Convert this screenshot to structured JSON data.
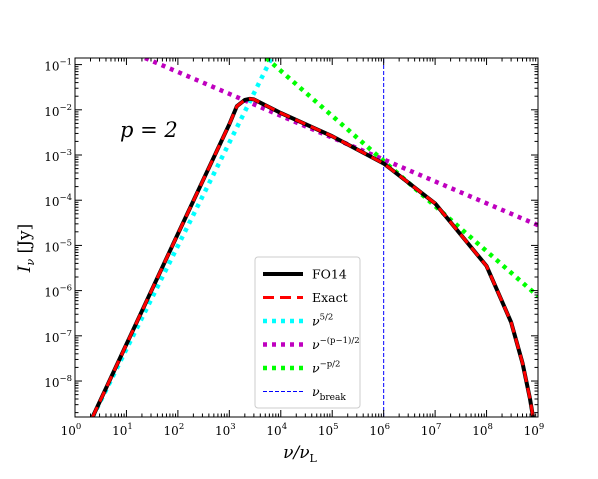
{
  "chart_data": {
    "type": "line",
    "title": "",
    "xlabel": "ν/ν_L",
    "ylabel": "I_ν [Jy]",
    "xscale": "log",
    "yscale": "log",
    "xlim": [
      1,
      1000000000
    ],
    "ylim": [
      1.6e-09,
      0.14
    ],
    "x_ticks": [
      1,
      10,
      100,
      1000,
      10000,
      100000,
      1000000,
      10000000,
      100000000,
      1000000000
    ],
    "x_tick_labels": [
      {
        "base": "10",
        "exp": "0"
      },
      {
        "base": "10",
        "exp": "1"
      },
      {
        "base": "10",
        "exp": "2"
      },
      {
        "base": "10",
        "exp": "3"
      },
      {
        "base": "10",
        "exp": "4"
      },
      {
        "base": "10",
        "exp": "5"
      },
      {
        "base": "10",
        "exp": "6"
      },
      {
        "base": "10",
        "exp": "7"
      },
      {
        "base": "10",
        "exp": "8"
      },
      {
        "base": "10",
        "exp": "9"
      }
    ],
    "y_ticks": [
      1e-08,
      1e-07,
      1e-06,
      1e-05,
      0.0001,
      0.001,
      0.01,
      0.1
    ],
    "y_tick_labels": [
      {
        "base": "10",
        "exp": "−8"
      },
      {
        "base": "10",
        "exp": "−7"
      },
      {
        "base": "10",
        "exp": "−6"
      },
      {
        "base": "10",
        "exp": "−5"
      },
      {
        "base": "10",
        "exp": "−4"
      },
      {
        "base": "10",
        "exp": "−3"
      },
      {
        "base": "10",
        "exp": "−2"
      },
      {
        "base": "10",
        "exp": "−1"
      }
    ],
    "annotation": "p = 2",
    "grid": false,
    "legend_position": "bottom-center",
    "series": [
      {
        "name": "FO14",
        "color": "#000000",
        "style": "solid",
        "x": [
          2.2,
          10,
          100,
          1000,
          1400,
          2000,
          2500,
          3000,
          10000,
          100000,
          1000000,
          10000000,
          100000000,
          300000000,
          500000000,
          700000000,
          800000000
        ],
        "y": [
          1.6e-09,
          6.5e-08,
          1.8e-05,
          0.0048,
          0.012,
          0.0165,
          0.0175,
          0.017,
          0.0085,
          0.0026,
          0.00065,
          8.5e-05,
          3.5e-06,
          2e-07,
          2.5e-08,
          4e-09,
          1.6e-09
        ]
      },
      {
        "name": "Exact",
        "color": "#ff0000",
        "style": "dashed",
        "x": [
          2.2,
          10,
          100,
          1000,
          1400,
          2000,
          2500,
          3000,
          10000,
          100000,
          1000000,
          10000000,
          100000000,
          300000000,
          500000000,
          700000000,
          800000000
        ],
        "y": [
          1.6e-09,
          6.5e-08,
          1.8e-05,
          0.0048,
          0.012,
          0.0165,
          0.0175,
          0.017,
          0.0085,
          0.0026,
          0.00065,
          8.5e-05,
          3.5e-06,
          2e-07,
          2.5e-08,
          4e-09,
          1.6e-09
        ]
      },
      {
        "name": "ν^{5/2}",
        "color": "#00ffff",
        "style": "dotted",
        "x": [
          2.2,
          6600
        ],
        "y": [
          1.6e-09,
          0.14
        ]
      },
      {
        "name": "ν^{-(p-1)/2}",
        "color": "#bf00bf",
        "style": "dotted",
        "x": [
          23,
          1000000000
        ],
        "y": [
          0.14,
          2.8e-05
        ]
      },
      {
        "name": "ν^{-p/2}",
        "color": "#00ff00",
        "style": "dotted",
        "x": [
          5200,
          1000000000
        ],
        "y": [
          0.14,
          7.5e-07
        ]
      },
      {
        "name": "ν_break",
        "color": "#0000ff",
        "style": "thin-dashed",
        "vertical": true,
        "x": [
          1000000,
          1000000
        ],
        "y": [
          1.6e-09,
          0.14
        ]
      }
    ],
    "legend": [
      {
        "label": "FO14"
      },
      {
        "label": "Exact"
      },
      {
        "base": "ν",
        "sup": "5/2"
      },
      {
        "base": "ν",
        "sup": "−(p−1)/2"
      },
      {
        "base": "ν",
        "sup": "−p/2"
      },
      {
        "base": "ν",
        "sub": "break"
      }
    ]
  }
}
